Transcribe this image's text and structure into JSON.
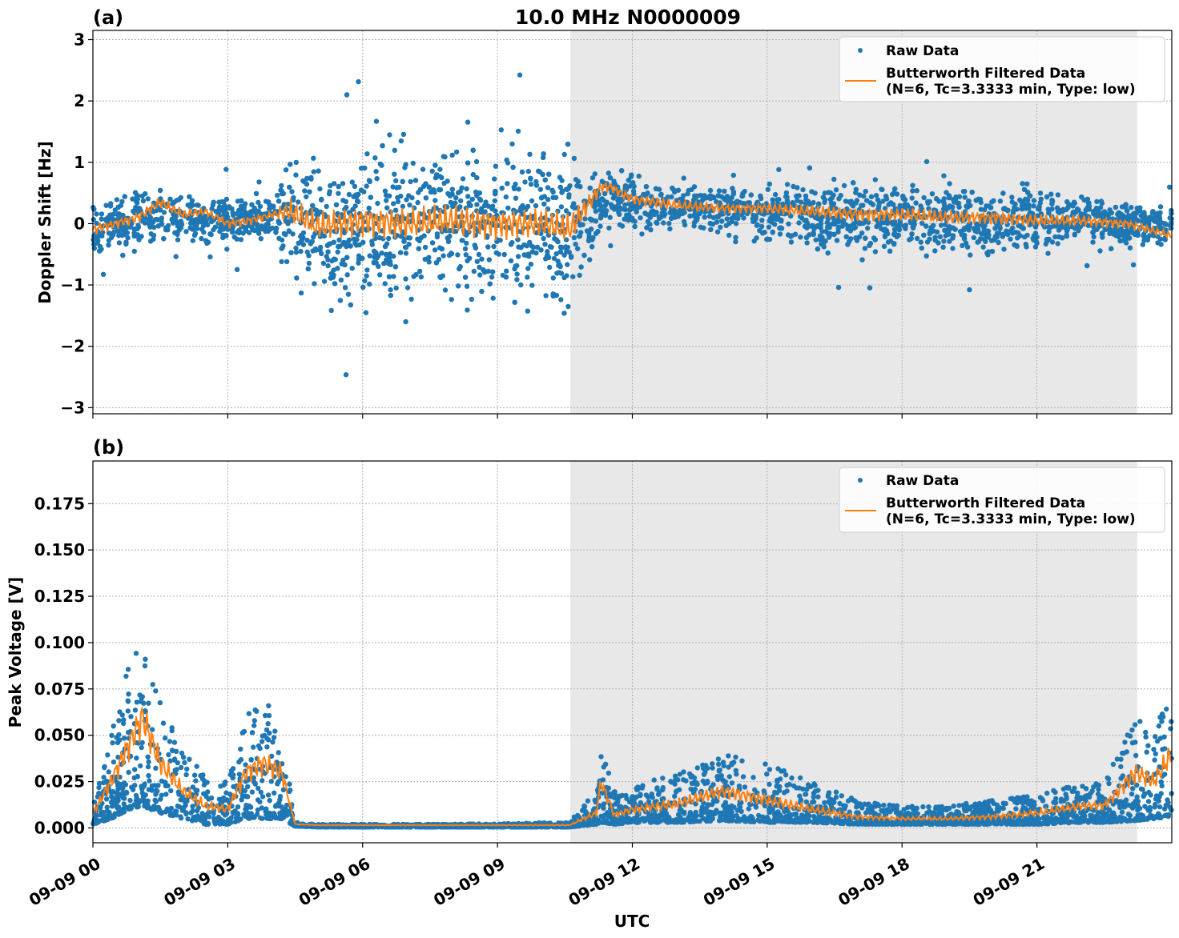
{
  "chart_data": [
    {
      "panel_label": "(a)",
      "type": "scatter",
      "title": "10.0 MHz N0000009",
      "xlabel": "",
      "ylabel": "Doppler Shift [Hz]",
      "ylim": [
        -3.1,
        3.15
      ],
      "yticks": [
        "3",
        "2",
        "1",
        "0",
        "−1",
        "−2",
        "−3"
      ],
      "ytick_values": [
        3,
        2,
        1,
        0,
        -1,
        -2,
        -3
      ],
      "grid": true,
      "legend_position": "top-right",
      "shaded_span_hours": [
        10.62,
        23.23
      ],
      "series": [
        {
          "name": "Raw Data",
          "style": "points",
          "color": "#1f77b4",
          "envelope_hours": [
            0,
            0.5,
            1,
            1.5,
            2,
            2.5,
            3,
            3.5,
            4,
            4.4,
            5,
            6,
            7,
            8,
            9,
            10,
            10.6,
            11.3,
            11.5,
            12,
            13,
            14,
            15,
            16,
            17,
            18,
            19,
            20,
            21,
            22,
            23,
            24
          ],
          "envelope_low": [
            -0.7,
            -0.6,
            -0.5,
            -0.5,
            -0.5,
            -0.4,
            -0.5,
            -0.4,
            -0.3,
            -1.5,
            -1.7,
            -1.8,
            -1.8,
            -1.8,
            -1.8,
            -1.7,
            -1.8,
            -0.3,
            -0.2,
            -0.3,
            -0.3,
            -0.3,
            -0.4,
            -0.6,
            -0.7,
            -0.7,
            -0.7,
            -0.7,
            -0.6,
            -0.5,
            -0.5,
            -0.4
          ],
          "envelope_high": [
            0.6,
            0.6,
            0.7,
            0.8,
            0.6,
            0.5,
            0.6,
            0.6,
            0.6,
            1.3,
            1.6,
            1.7,
            1.8,
            1.8,
            1.8,
            1.7,
            1.7,
            1.0,
            1.0,
            0.9,
            0.8,
            0.8,
            0.8,
            0.8,
            0.9,
            0.9,
            0.8,
            0.8,
            0.8,
            0.7,
            0.5,
            0.4
          ]
        },
        {
          "name": "Butterworth Filtered Data\n(N=6, Tc=3.3333 min, Type: low)",
          "style": "line",
          "color": "#ff7f0e",
          "x_hours": [
            0,
            0.5,
            1,
            1.5,
            2,
            2.5,
            3,
            3.5,
            4,
            4.4,
            5,
            6,
            7,
            8,
            9,
            10,
            10.6,
            11.3,
            11.5,
            12,
            13,
            14,
            15,
            16,
            17,
            18,
            19,
            20,
            21,
            22,
            23,
            24
          ],
          "y": [
            -0.1,
            0.0,
            0.1,
            0.35,
            0.15,
            0.2,
            0.0,
            0.05,
            0.15,
            0.2,
            -0.05,
            0.05,
            0.0,
            0.05,
            0.0,
            0.0,
            -0.1,
            0.6,
            0.6,
            0.4,
            0.3,
            0.25,
            0.25,
            0.2,
            0.15,
            0.15,
            0.1,
            0.1,
            0.05,
            0.05,
            0.0,
            -0.2
          ]
        }
      ],
      "legend_entries": [
        "Raw Data",
        "Butterworth Filtered Data",
        "(N=6, Tc=3.3333 min, Type: low)"
      ]
    },
    {
      "panel_label": "(b)",
      "type": "scatter",
      "title": "",
      "xlabel": "UTC",
      "ylabel": "Peak Voltage [V]",
      "ylim": [
        -0.008,
        0.198
      ],
      "yticks": [
        "0.175",
        "0.150",
        "0.125",
        "0.100",
        "0.075",
        "0.050",
        "0.025",
        "0.000"
      ],
      "ytick_values": [
        0.175,
        0.15,
        0.125,
        0.1,
        0.075,
        0.05,
        0.025,
        0.0
      ],
      "xlim_hours": [
        0,
        24
      ],
      "xticks": [
        "09-09 00",
        "09-09 03",
        "09-09 06",
        "09-09 09",
        "09-09 12",
        "09-09 15",
        "09-09 18",
        "09-09 21"
      ],
      "xtick_hours": [
        0,
        3,
        6,
        9,
        12,
        15,
        18,
        21
      ],
      "grid": true,
      "legend_position": "top-right",
      "shaded_span_hours": [
        10.62,
        23.23
      ],
      "series": [
        {
          "name": "Raw Data",
          "style": "points",
          "color": "#1f77b4",
          "envelope_hours": [
            0,
            0.4,
            0.8,
            1.1,
            1.5,
            2.0,
            2.5,
            3.0,
            3.4,
            3.8,
            4.2,
            4.5,
            5,
            8,
            10.6,
            11.2,
            11.3,
            11.6,
            12,
            13,
            14,
            15,
            16,
            17,
            18,
            19,
            20,
            21,
            22,
            22.5,
            23.2,
            23.6,
            24
          ],
          "envelope_low": [
            0.002,
            0.005,
            0.01,
            0.012,
            0.008,
            0.005,
            0.002,
            0.002,
            0.005,
            0.005,
            0.005,
            0.001,
            0.0005,
            0.0005,
            0.0005,
            0.002,
            0.003,
            0.002,
            0.003,
            0.003,
            0.004,
            0.003,
            0.003,
            0.002,
            0.002,
            0.002,
            0.002,
            0.002,
            0.003,
            0.003,
            0.004,
            0.005,
            0.006
          ],
          "envelope_high": [
            0.015,
            0.05,
            0.09,
            0.11,
            0.07,
            0.04,
            0.03,
            0.025,
            0.06,
            0.07,
            0.055,
            0.003,
            0.002,
            0.002,
            0.003,
            0.02,
            0.045,
            0.02,
            0.022,
            0.03,
            0.04,
            0.035,
            0.025,
            0.015,
            0.012,
            0.012,
            0.015,
            0.018,
            0.025,
            0.025,
            0.06,
            0.05,
            0.08
          ]
        },
        {
          "name": "Butterworth Filtered Data\n(N=6, Tc=3.3333 min, Type: low)",
          "style": "line",
          "color": "#ff7f0e",
          "x_hours": [
            0,
            0.4,
            0.8,
            1.1,
            1.5,
            2.0,
            2.5,
            3.0,
            3.4,
            3.8,
            4.2,
            4.5,
            5,
            8,
            10.6,
            11.2,
            11.3,
            11.6,
            12,
            13,
            14,
            15,
            16,
            17,
            18,
            19,
            20,
            21,
            22,
            22.5,
            23.2,
            23.6,
            24
          ],
          "y": [
            0.008,
            0.025,
            0.045,
            0.06,
            0.035,
            0.02,
            0.012,
            0.01,
            0.03,
            0.035,
            0.03,
            0.002,
            0.0015,
            0.0015,
            0.0015,
            0.008,
            0.025,
            0.007,
            0.01,
            0.013,
            0.02,
            0.015,
            0.01,
            0.006,
            0.005,
            0.005,
            0.006,
            0.008,
            0.012,
            0.012,
            0.03,
            0.025,
            0.04
          ]
        }
      ],
      "legend_entries": [
        "Raw Data",
        "Butterworth Filtered Data",
        "(N=6, Tc=3.3333 min, Type: low)"
      ]
    }
  ]
}
